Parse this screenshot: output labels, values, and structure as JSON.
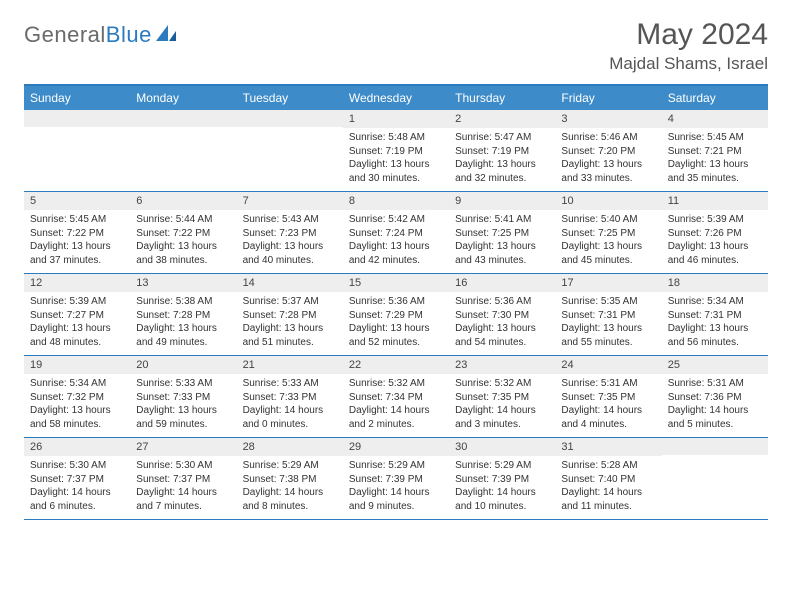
{
  "brand": {
    "part1": "General",
    "part2": "Blue"
  },
  "title": "May 2024",
  "location": "Majdal Shams, Israel",
  "colors": {
    "header_bg": "#3d8bc8",
    "accent": "#2b7bbf",
    "daynum_bg": "#eeeeee",
    "text": "#333333",
    "title_text": "#555555"
  },
  "dayNames": [
    "Sunday",
    "Monday",
    "Tuesday",
    "Wednesday",
    "Thursday",
    "Friday",
    "Saturday"
  ],
  "weeks": [
    [
      {
        "n": "",
        "sr": "",
        "ss": "",
        "dl": ""
      },
      {
        "n": "",
        "sr": "",
        "ss": "",
        "dl": ""
      },
      {
        "n": "",
        "sr": "",
        "ss": "",
        "dl": ""
      },
      {
        "n": "1",
        "sr": "Sunrise: 5:48 AM",
        "ss": "Sunset: 7:19 PM",
        "dl": "Daylight: 13 hours and 30 minutes."
      },
      {
        "n": "2",
        "sr": "Sunrise: 5:47 AM",
        "ss": "Sunset: 7:19 PM",
        "dl": "Daylight: 13 hours and 32 minutes."
      },
      {
        "n": "3",
        "sr": "Sunrise: 5:46 AM",
        "ss": "Sunset: 7:20 PM",
        "dl": "Daylight: 13 hours and 33 minutes."
      },
      {
        "n": "4",
        "sr": "Sunrise: 5:45 AM",
        "ss": "Sunset: 7:21 PM",
        "dl": "Daylight: 13 hours and 35 minutes."
      }
    ],
    [
      {
        "n": "5",
        "sr": "Sunrise: 5:45 AM",
        "ss": "Sunset: 7:22 PM",
        "dl": "Daylight: 13 hours and 37 minutes."
      },
      {
        "n": "6",
        "sr": "Sunrise: 5:44 AM",
        "ss": "Sunset: 7:22 PM",
        "dl": "Daylight: 13 hours and 38 minutes."
      },
      {
        "n": "7",
        "sr": "Sunrise: 5:43 AM",
        "ss": "Sunset: 7:23 PM",
        "dl": "Daylight: 13 hours and 40 minutes."
      },
      {
        "n": "8",
        "sr": "Sunrise: 5:42 AM",
        "ss": "Sunset: 7:24 PM",
        "dl": "Daylight: 13 hours and 42 minutes."
      },
      {
        "n": "9",
        "sr": "Sunrise: 5:41 AM",
        "ss": "Sunset: 7:25 PM",
        "dl": "Daylight: 13 hours and 43 minutes."
      },
      {
        "n": "10",
        "sr": "Sunrise: 5:40 AM",
        "ss": "Sunset: 7:25 PM",
        "dl": "Daylight: 13 hours and 45 minutes."
      },
      {
        "n": "11",
        "sr": "Sunrise: 5:39 AM",
        "ss": "Sunset: 7:26 PM",
        "dl": "Daylight: 13 hours and 46 minutes."
      }
    ],
    [
      {
        "n": "12",
        "sr": "Sunrise: 5:39 AM",
        "ss": "Sunset: 7:27 PM",
        "dl": "Daylight: 13 hours and 48 minutes."
      },
      {
        "n": "13",
        "sr": "Sunrise: 5:38 AM",
        "ss": "Sunset: 7:28 PM",
        "dl": "Daylight: 13 hours and 49 minutes."
      },
      {
        "n": "14",
        "sr": "Sunrise: 5:37 AM",
        "ss": "Sunset: 7:28 PM",
        "dl": "Daylight: 13 hours and 51 minutes."
      },
      {
        "n": "15",
        "sr": "Sunrise: 5:36 AM",
        "ss": "Sunset: 7:29 PM",
        "dl": "Daylight: 13 hours and 52 minutes."
      },
      {
        "n": "16",
        "sr": "Sunrise: 5:36 AM",
        "ss": "Sunset: 7:30 PM",
        "dl": "Daylight: 13 hours and 54 minutes."
      },
      {
        "n": "17",
        "sr": "Sunrise: 5:35 AM",
        "ss": "Sunset: 7:31 PM",
        "dl": "Daylight: 13 hours and 55 minutes."
      },
      {
        "n": "18",
        "sr": "Sunrise: 5:34 AM",
        "ss": "Sunset: 7:31 PM",
        "dl": "Daylight: 13 hours and 56 minutes."
      }
    ],
    [
      {
        "n": "19",
        "sr": "Sunrise: 5:34 AM",
        "ss": "Sunset: 7:32 PM",
        "dl": "Daylight: 13 hours and 58 minutes."
      },
      {
        "n": "20",
        "sr": "Sunrise: 5:33 AM",
        "ss": "Sunset: 7:33 PM",
        "dl": "Daylight: 13 hours and 59 minutes."
      },
      {
        "n": "21",
        "sr": "Sunrise: 5:33 AM",
        "ss": "Sunset: 7:33 PM",
        "dl": "Daylight: 14 hours and 0 minutes."
      },
      {
        "n": "22",
        "sr": "Sunrise: 5:32 AM",
        "ss": "Sunset: 7:34 PM",
        "dl": "Daylight: 14 hours and 2 minutes."
      },
      {
        "n": "23",
        "sr": "Sunrise: 5:32 AM",
        "ss": "Sunset: 7:35 PM",
        "dl": "Daylight: 14 hours and 3 minutes."
      },
      {
        "n": "24",
        "sr": "Sunrise: 5:31 AM",
        "ss": "Sunset: 7:35 PM",
        "dl": "Daylight: 14 hours and 4 minutes."
      },
      {
        "n": "25",
        "sr": "Sunrise: 5:31 AM",
        "ss": "Sunset: 7:36 PM",
        "dl": "Daylight: 14 hours and 5 minutes."
      }
    ],
    [
      {
        "n": "26",
        "sr": "Sunrise: 5:30 AM",
        "ss": "Sunset: 7:37 PM",
        "dl": "Daylight: 14 hours and 6 minutes."
      },
      {
        "n": "27",
        "sr": "Sunrise: 5:30 AM",
        "ss": "Sunset: 7:37 PM",
        "dl": "Daylight: 14 hours and 7 minutes."
      },
      {
        "n": "28",
        "sr": "Sunrise: 5:29 AM",
        "ss": "Sunset: 7:38 PM",
        "dl": "Daylight: 14 hours and 8 minutes."
      },
      {
        "n": "29",
        "sr": "Sunrise: 5:29 AM",
        "ss": "Sunset: 7:39 PM",
        "dl": "Daylight: 14 hours and 9 minutes."
      },
      {
        "n": "30",
        "sr": "Sunrise: 5:29 AM",
        "ss": "Sunset: 7:39 PM",
        "dl": "Daylight: 14 hours and 10 minutes."
      },
      {
        "n": "31",
        "sr": "Sunrise: 5:28 AM",
        "ss": "Sunset: 7:40 PM",
        "dl": "Daylight: 14 hours and 11 minutes."
      },
      {
        "n": "",
        "sr": "",
        "ss": "",
        "dl": ""
      }
    ]
  ]
}
